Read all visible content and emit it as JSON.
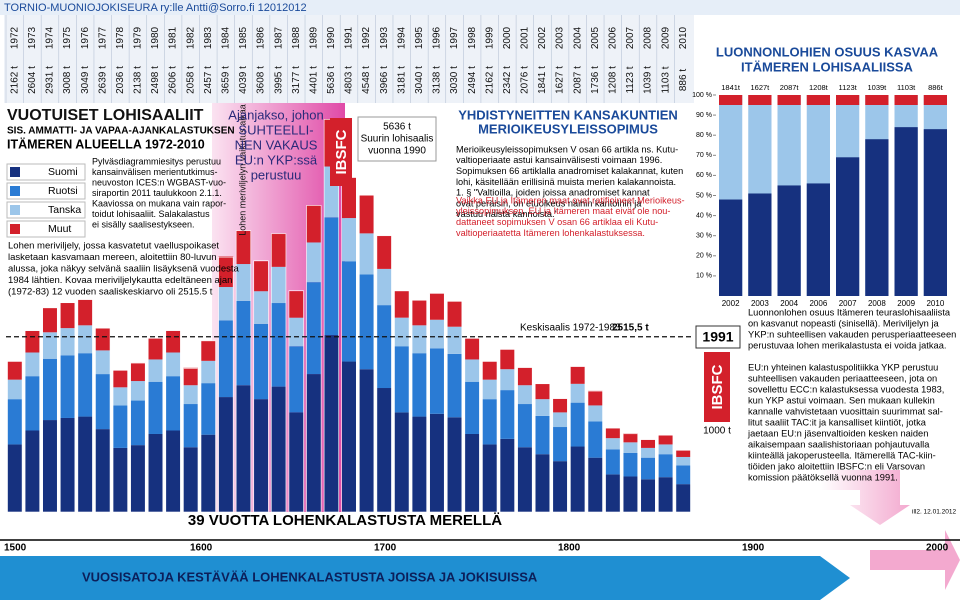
{
  "header": "TORNIO-MUONIOJOKISEURA ry:lle  Antti@Sorro.fi 12012012",
  "chart_data": [
    {
      "type": "stacked_bar",
      "title": "VUOTUISET LOHISAALIIT",
      "subtitle": [
        "SIS. AMMATTI- JA VAPAA-AJANKALASTUKSEN",
        "ITÄMEREN ALUEELLA 1972-2010"
      ],
      "categories": [
        "1972",
        "1973",
        "1974",
        "1975",
        "1976",
        "1977",
        "1978",
        "1979",
        "1980",
        "1981",
        "1982",
        "1983",
        "1984",
        "1985",
        "1986",
        "1987",
        "1988",
        "1989",
        "1990",
        "1991",
        "1992",
        "1993",
        "1994",
        "1995",
        "1996",
        "1997",
        "1998",
        "1999",
        "2000",
        "2001",
        "2002",
        "2003",
        "2004",
        "2005",
        "2006",
        "2007",
        "2008",
        "2009",
        "2010"
      ],
      "series": [
        {
          "name": "Suomi",
          "color": "#16317f",
          "values": [
            970,
            1170,
            1320,
            1350,
            1370,
            1190,
            920,
            960,
            1120,
            1170,
            930,
            1110,
            1650,
            1820,
            1620,
            1800,
            1430,
            1980,
            2540,
            2160,
            2050,
            1780,
            1430,
            1370,
            1410,
            1360,
            1120,
            970,
            1050,
            930,
            830,
            730,
            940,
            780,
            540,
            510,
            470,
            500,
            400
          ]
        },
        {
          "name": "Ruotsi",
          "color": "#2a7bd4",
          "values": [
            650,
            780,
            880,
            900,
            910,
            790,
            610,
            640,
            750,
            780,
            620,
            740,
            1100,
            1210,
            1080,
            1200,
            950,
            1320,
            1690,
            1440,
            1360,
            1190,
            950,
            910,
            940,
            910,
            750,
            650,
            700,
            620,
            550,
            490,
            630,
            520,
            360,
            340,
            310,
            330,
            270
          ]
        },
        {
          "name": "Tanska",
          "color": "#9cc6ea",
          "values": [
            280,
            340,
            380,
            390,
            400,
            340,
            260,
            280,
            320,
            340,
            270,
            320,
            480,
            530,
            470,
            520,
            410,
            570,
            730,
            620,
            590,
            520,
            410,
            400,
            410,
            390,
            320,
            280,
            300,
            270,
            240,
            210,
            270,
            230,
            160,
            150,
            140,
            140,
            120
          ]
        },
        {
          "name": "Muut",
          "color": "#d3202b",
          "values": [
            260,
            310,
            350,
            360,
            370,
            320,
            240,
            260,
            300,
            310,
            250,
            290,
            440,
            480,
            430,
            480,
            380,
            530,
            680,
            580,
            550,
            480,
            380,
            360,
            380,
            360,
            300,
            260,
            280,
            250,
            220,
            200,
            250,
            210,
            140,
            130,
            120,
            130,
            100
          ]
        }
      ],
      "totals": [
        2162,
        2604,
        2931,
        3008,
        3049,
        2639,
        2036,
        2138,
        2498,
        2606,
        2058,
        2457,
        3659,
        4039,
        3608,
        3995,
        3177,
        4401,
        5636,
        4803,
        4548,
        3966,
        3181,
        3040,
        3138,
        3030,
        2494,
        2162,
        2342,
        2076,
        1841,
        1627,
        2087,
        1736,
        1208,
        1123,
        1039,
        1103,
        886
      ],
      "total_labels": [
        "2162 t",
        "2604 t",
        "2931 t",
        "3008 t",
        "3049 t",
        "2639 t",
        "2036 t",
        "2138 t",
        "2498 t",
        "2606 t",
        "2058 t",
        "2457 t",
        "3659 t",
        "4039 t",
        "3608 t",
        "3995 t",
        "3177 t",
        "4401 t",
        "5636 t",
        "4803 t",
        "4548 t",
        "3966 t",
        "3181 t",
        "3040 t",
        "3138 t",
        "3030 t",
        "2494 t",
        "2162 t",
        "2342 t",
        "2076 t",
        "1841 t",
        "1627 t",
        "2087 t",
        "1736 t",
        "1208 t",
        "1123 t",
        "1039 t",
        "1103 t",
        "886 t"
      ],
      "ylim": [
        0,
        5800
      ],
      "mean": 2515.5,
      "mean_text": "Keskisaalis 1972-1983",
      "mean_label": "2515,5 t"
    },
    {
      "type": "bar",
      "title": [
        "LUONNONLOHIEN OSUUS KASVAA",
        "ITÄMEREN LOHISAALIISSA"
      ],
      "categories": [
        "2002",
        "2003",
        "2004",
        "2006",
        "2007",
        "2008",
        "2009",
        "2010"
      ],
      "values": [
        48,
        51,
        55,
        56,
        69,
        78,
        84,
        83
      ],
      "color": "#16317f",
      "top_labels": [
        "1841t",
        "1627t",
        "2087t",
        "1208t",
        "1123t",
        "1039t",
        "1103t",
        "886t"
      ],
      "ylim": [
        0,
        100
      ],
      "yticks": [
        {
          "value": 10,
          "label": "10 %"
        },
        {
          "value": 20,
          "label": "20 %"
        },
        {
          "value": 30,
          "label": "30 %"
        },
        {
          "value": 40,
          "label": "40 %"
        },
        {
          "value": 50,
          "label": "50 %"
        },
        {
          "value": 60,
          "label": "60 %"
        },
        {
          "value": 70,
          "label": "70 %"
        },
        {
          "value": 80,
          "label": "80 %"
        },
        {
          "value": 90,
          "label": "90 %"
        },
        {
          "value": 100,
          "label": "100 %"
        }
      ]
    }
  ],
  "notes_left": [
    "Pylväsdiagrammiesitys perustuu",
    "kansainvälisen merientutkimus-",
    "neuvoston ICES:n WGBAST-vuo-",
    "siraportin 2011 taulukkoon 2.1.1.",
    "Kaaviossa on mukana vain rapor-",
    "toidut lohisaaliit. Salakalastus",
    "ei sisälly saalisestykseen."
  ],
  "farming_note": [
    "Lohen meriviljely, jossa kasvatetut vaelluspoikaset",
    "lasketaan kasvamaan mereen, aloitettiin 80-luvun",
    "alussa, joka näkyy selvänä saaliin lisäyksenä vuodesta",
    "1984 lähtien. Kovaa meriviljelykautta edeltäneen ajan",
    "(1972-83) 12 vuoden saaliskeskiarvo oli 2515.5 t"
  ],
  "vertical_note": "Lohen meriviljelyn vaikutus alkaa",
  "period_note": [
    "Ajanjakso, johon",
    "SUHTEELLI-",
    "NEN VAKAUS",
    "EU:n YKP:ssä",
    "perustuu"
  ],
  "ibsfc": "IBSFC",
  "max_box": [
    "5636 t",
    "Suurin lohisaalis",
    "vuonna 1990"
  ],
  "un_box": {
    "title": [
      "YHDISTYNEITTEN KANSAKUNTIEN",
      "MERIOIKEUSYLEISSOPIMUS"
    ],
    "text": [
      "Merioikeusyleissopimuksen V osan 66 artikla ns. Kutu-",
      "valtioperiaate astui kansainvälisesti voimaan 1996.",
      "Sopimuksen 66 artiklalla anadromiset kalakannat, kuten",
      "lohi, käsitellään erillisinä muista merien kalakannoista.",
      "1. § \"Valtioilla, joiden joissa anadromiset kannat",
      "ovat peräisin, on etuoikeus näihin kantoihin ja",
      "vastuu näistä kannoista.\""
    ],
    "warning": [
      "Vaikka EU ja Itämeren maat ovat ratifioineet Merioikeus-",
      "yleissopimuksen, EU ja Itämeren maat eivät ole nou-",
      "dattaneet sopimuksen V osan 66 artiklaa eli Kutu-",
      "valtioperiaatetta Itämeren lohenkalastuksessa."
    ]
  },
  "right_text_1": [
    "Luonnonlohen osuus Itämeren teuraslohisaaliista",
    "on kasvanut nopeasti (sinisellä). Meriviljelyn ja",
    "YKP:n suhteellisen vakauden perusperiaatteeseen",
    "perustuvaa lohen merikalastusta ei voida jatkaa."
  ],
  "year_1991": "1991",
  "unit_1000": "1000 t",
  "right_text_2": [
    "EU:n yhteinen kalastuspolitiikka YKP perustuu",
    "suhteellisen vakauden periaatteeseen, jota on",
    "sovellettu ECC:n kalastuksessa vuodesta 1983,",
    "kun YKP astui voimaan. Sen mukaan kullekin",
    "kannalle vahvistetaan vuosittain suurimmat sal-",
    "litut saaliit TAC:it ja kansalliset kiintiöt, jotka",
    "jaetaan EU:n jäsenvaltioiden kesken naiden",
    "aikaisempaan saalishistoriaan pohjautuvalla",
    "kiinteällä jakoperusteella. Itämerellä TAC-kiin-",
    "tiöiden jako aloitettiin IBSFC:n eli Varsovan",
    "komission päätöksellä vuonna 1991."
  ],
  "banner": "39 VUOTTA LOHENKALASTUSTA MERELLÄ",
  "credit": "ill2. 12.01.2012",
  "timeline": {
    "labels": [
      "1500",
      "1600",
      "1700",
      "1800",
      "1900",
      "2000"
    ],
    "title": "VUOSISATOJA KESTÄVÄÄ LOHENKALASTUSTA JOISSA JA JOKISUISSA"
  }
}
